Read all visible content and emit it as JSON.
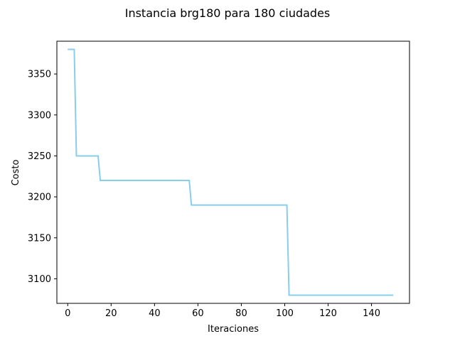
{
  "chart_data": {
    "type": "line",
    "title": "Instancia brg180 para 180 ciudades",
    "xlabel": "Iteraciones",
    "ylabel": "Costo",
    "xlim": [
      -5,
      157.5
    ],
    "ylim": [
      3070,
      3390
    ],
    "xticks": [
      0,
      20,
      40,
      60,
      80,
      100,
      120,
      140
    ],
    "yticks": [
      3100,
      3150,
      3200,
      3250,
      3300,
      3350
    ],
    "grid": false,
    "legend": "none",
    "series": [
      {
        "color": "#87CEEB",
        "x": [
          0,
          1,
          2,
          3,
          4,
          14,
          15,
          56,
          57,
          101,
          102,
          150
        ],
        "y": [
          3380,
          3380,
          3380,
          3380,
          3250,
          3250,
          3220,
          3220,
          3190,
          3190,
          3080,
          3080
        ]
      }
    ]
  }
}
